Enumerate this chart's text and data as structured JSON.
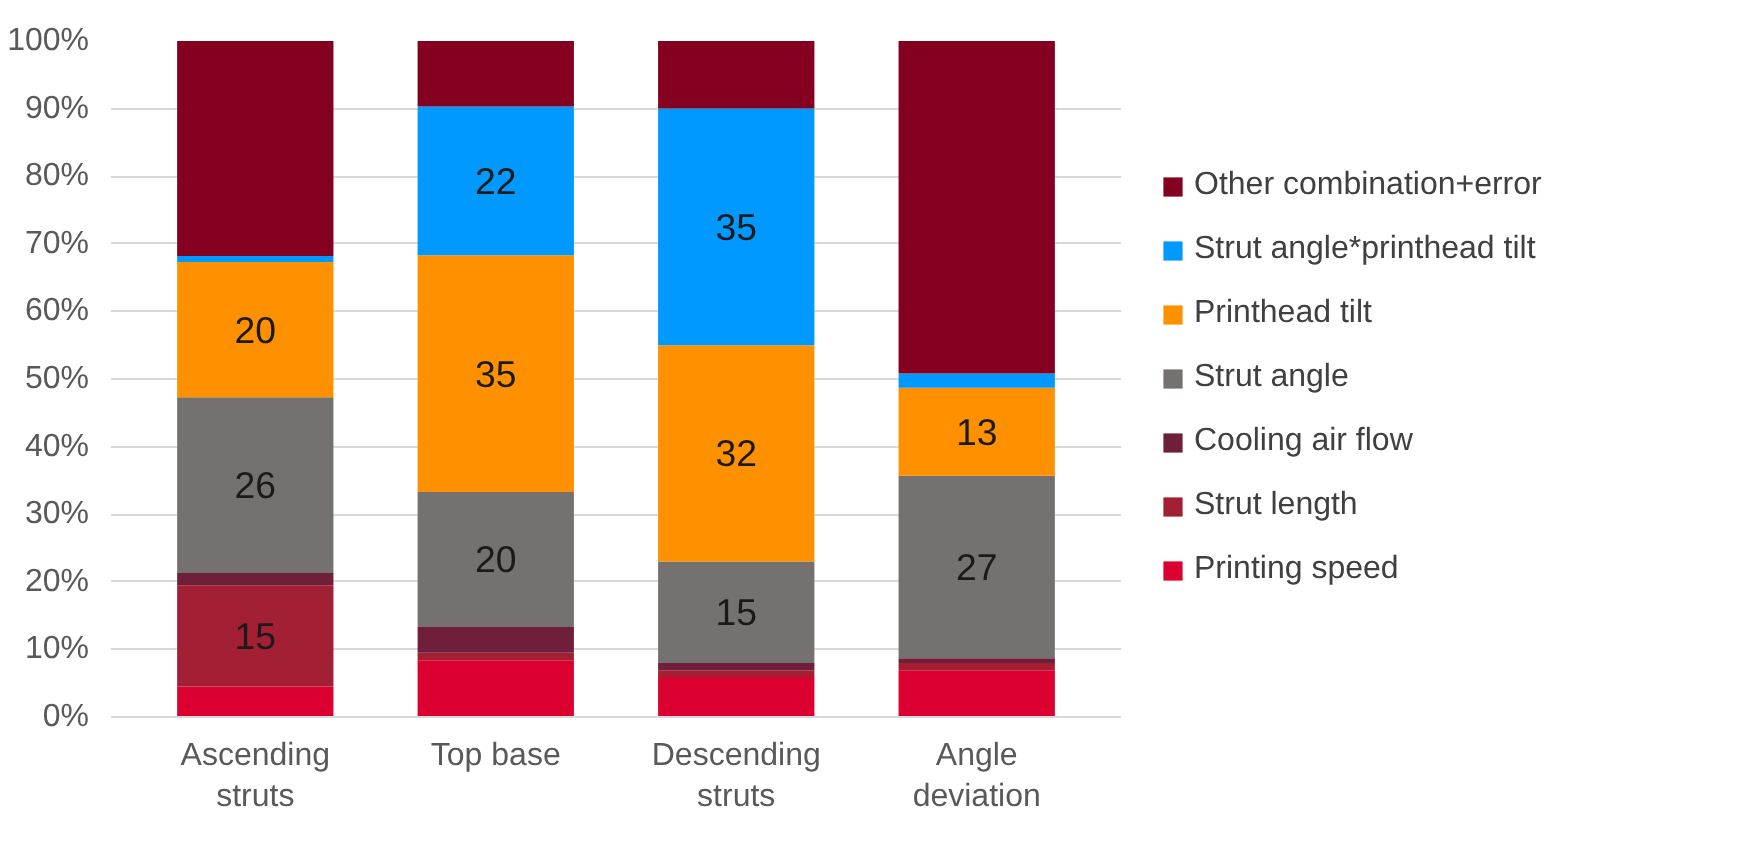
{
  "chart_data": {
    "type": "bar",
    "stacked": true,
    "categories": [
      "Ascending\nstruts",
      "Top base",
      "Descending\nstruts",
      "Angle\ndeviation"
    ],
    "series": [
      {
        "name": "Printing speed",
        "color": "#dc0030",
        "values": [
          4.5,
          8.4,
          5.9,
          6.9
        ]
      },
      {
        "name": "Strut length",
        "color": "#a31f34",
        "values": [
          15,
          1.1,
          1.0,
          1.1
        ],
        "value_labels": [
          "15",
          null,
          null,
          null
        ]
      },
      {
        "name": "Cooling air flow",
        "color": "#6f1f3a",
        "values": [
          1.8,
          3.8,
          1.1,
          0.7
        ]
      },
      {
        "name": "Strut angle",
        "color": "#767171",
        "values": [
          26,
          20,
          15,
          27
        ],
        "value_labels": [
          "26",
          "20",
          "15",
          "27"
        ]
      },
      {
        "name": "Printhead tilt",
        "color": "#ff9100",
        "values": [
          20,
          35,
          32,
          13
        ],
        "value_labels": [
          "20",
          "35",
          "32",
          "13"
        ]
      },
      {
        "name": "Strut angle*printhead tilt",
        "color": "#0099ff",
        "values": [
          0.9,
          22,
          35,
          2.1
        ],
        "value_labels": [
          null,
          "22",
          "35",
          null
        ]
      },
      {
        "name": "Other combination+error",
        "color": "#850020",
        "values": [
          31.8,
          9.7,
          10,
          49.2
        ]
      }
    ],
    "ylim": [
      0,
      100
    ],
    "yticks": [
      {
        "value": 0,
        "label": "0%"
      },
      {
        "value": 10,
        "label": "10%"
      },
      {
        "value": 20,
        "label": "20%"
      },
      {
        "value": 30,
        "label": "30%"
      },
      {
        "value": 40,
        "label": "40%"
      },
      {
        "value": 50,
        "label": "50%"
      },
      {
        "value": 60,
        "label": "60%"
      },
      {
        "value": 70,
        "label": "70%"
      },
      {
        "value": 80,
        "label": "80%"
      },
      {
        "value": 90,
        "label": "90%"
      },
      {
        "value": 100,
        "label": "100%"
      }
    ],
    "grid": "y",
    "legend": "right"
  }
}
